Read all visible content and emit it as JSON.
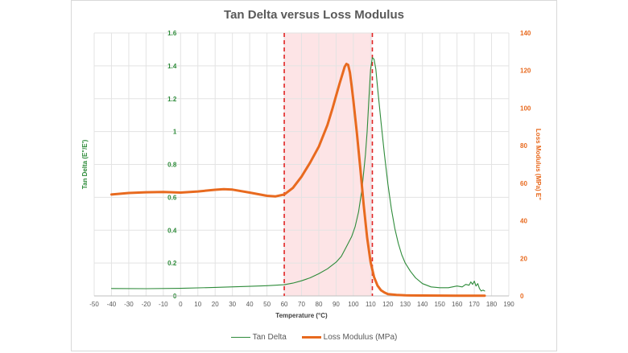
{
  "chart_data": {
    "type": "line",
    "title": "Tan Delta versus Loss Modulus",
    "xlabel": "Temperature (°C)",
    "ylabel_left": "Tan Delta (E\"/E')",
    "ylabel_right": "Loss Modulus (MPa) E\"",
    "xlim": [
      -50,
      190
    ],
    "ylim_left": [
      0,
      1.6
    ],
    "ylim_right": [
      0,
      140
    ],
    "x_ticks": [
      -50,
      -40,
      -30,
      -20,
      -10,
      0,
      10,
      20,
      30,
      40,
      50,
      60,
      70,
      80,
      90,
      100,
      110,
      120,
      130,
      140,
      150,
      160,
      170,
      180,
      190
    ],
    "y_ticks_left": [
      "0",
      "0.2",
      "0.4",
      "0.6",
      "0.8",
      "1",
      "1.2",
      "1.4",
      "1.6"
    ],
    "y_ticks_right": [
      "0",
      "20",
      "40",
      "60",
      "80",
      "100",
      "120",
      "140"
    ],
    "grid": true,
    "legend_position": "bottom",
    "shaded_region": {
      "x_start": 60,
      "x_end": 111,
      "color": "#fde4e6"
    },
    "vertical_lines": [
      60,
      111
    ],
    "series": [
      {
        "name": "Tan Delta",
        "axis": "left",
        "color": "#2e8b3a",
        "x": [
          -40,
          -20,
          0,
          20,
          40,
          50,
          60,
          65,
          70,
          75,
          80,
          85,
          90,
          93,
          96,
          99,
          101,
          103,
          105,
          107,
          108,
          109,
          110,
          111,
          112,
          113,
          114,
          116,
          118,
          120,
          122,
          124,
          126,
          128,
          130,
          133,
          136,
          140,
          145,
          150,
          155,
          160,
          163,
          165,
          167,
          168,
          169,
          170,
          171,
          172,
          173,
          174,
          175,
          176
        ],
        "values": [
          0.045,
          0.044,
          0.046,
          0.052,
          0.058,
          0.062,
          0.068,
          0.078,
          0.092,
          0.11,
          0.135,
          0.165,
          0.205,
          0.24,
          0.3,
          0.36,
          0.42,
          0.51,
          0.65,
          0.86,
          1.0,
          1.2,
          1.38,
          1.45,
          1.44,
          1.38,
          1.27,
          1.06,
          0.86,
          0.68,
          0.53,
          0.41,
          0.32,
          0.25,
          0.2,
          0.15,
          0.11,
          0.075,
          0.055,
          0.05,
          0.05,
          0.06,
          0.055,
          0.07,
          0.065,
          0.085,
          0.07,
          0.09,
          0.06,
          0.075,
          0.045,
          0.03,
          0.035,
          0.03
        ]
      },
      {
        "name": "Loss Modulus (MPa)",
        "axis": "right",
        "color": "#e86a1f",
        "x": [
          -40,
          -30,
          -20,
          -10,
          0,
          10,
          20,
          25,
          30,
          40,
          50,
          55,
          60,
          65,
          70,
          75,
          80,
          85,
          88,
          90,
          92,
          94,
          95,
          96,
          97,
          98,
          99,
          100,
          102,
          104,
          106,
          108,
          110,
          112,
          114,
          116,
          118,
          120,
          125,
          130,
          140,
          150,
          160,
          170,
          176
        ],
        "values": [
          54,
          54.8,
          55.2,
          55.3,
          55,
          55.6,
          56.5,
          56.8,
          56.6,
          55,
          53.3,
          53,
          54,
          57.5,
          63.5,
          71,
          79.5,
          91,
          100,
          106.5,
          113,
          119,
          122,
          123.5,
          123,
          119,
          112,
          104,
          87,
          68,
          48,
          31,
          18,
          10,
          5.5,
          3,
          1.8,
          1,
          0.5,
          0.3,
          0.2,
          0.15,
          0.1,
          0.1,
          0.1
        ]
      }
    ]
  }
}
